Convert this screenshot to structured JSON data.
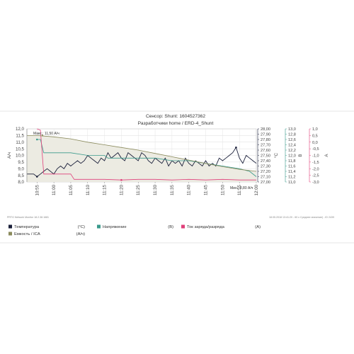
{
  "chart_data": {
    "type": "line",
    "title": "Сенсор: Shunt: 1604527362",
    "subtitle": "Разработчики home / ERD-4_Shunt",
    "x": [
      "10:55",
      "11:00",
      "11:05",
      "11:10",
      "11:15",
      "11:20",
      "11:25",
      "11:30",
      "11:35",
      "11:40",
      "11:45",
      "11:50",
      "11:55",
      "12:00"
    ],
    "xlim": [
      "10:52",
      "12:00"
    ],
    "axes": {
      "left": {
        "label": "А/ч",
        "ylim": [
          8.0,
          12.0
        ],
        "ticks": [
          "8,0",
          "8,5",
          "9,0",
          "9,5",
          "10,0",
          "10,5",
          "11,0",
          "11,5",
          "12,0"
        ]
      },
      "right1": {
        "label": "°C",
        "ylim": [
          27.0,
          28.0
        ],
        "ticks": [
          "27,00",
          "27,10",
          "27,20",
          "27,30",
          "27,40",
          "27,50",
          "27,60",
          "27,70",
          "27,80",
          "27,90",
          "28,00"
        ]
      },
      "right2": {
        "label": "В",
        "ylim": [
          11.0,
          13.0
        ],
        "ticks": [
          "11,0",
          "11,2",
          "11,4",
          "11,6",
          "11,8",
          "12,0",
          "12,2",
          "12,4",
          "12,6",
          "12,8",
          "13,0"
        ]
      },
      "right3": {
        "label": "A",
        "ylim": [
          -3.0,
          1.0
        ],
        "ticks": [
          "-3,0",
          "-2,5",
          "-2,0",
          "-1,5",
          "-1,0",
          "-0,5",
          "0,0",
          "0,5",
          "1,0"
        ]
      }
    },
    "grid": true,
    "series": [
      {
        "name": "Температура",
        "unit": "(°C)",
        "axis": "right1",
        "color": "#1a1f3a",
        "x": [
          "10:52",
          "10:54",
          "10:55",
          "10:56",
          "10:57",
          "10:58",
          "11:00",
          "11:01",
          "11:02",
          "11:03",
          "11:04",
          "11:05",
          "11:06",
          "11:07",
          "11:08",
          "11:09",
          "11:10",
          "11:11",
          "11:12",
          "11:13",
          "11:14",
          "11:15",
          "11:16",
          "11:17",
          "11:18",
          "11:19",
          "11:20",
          "11:21",
          "11:22",
          "11:23",
          "11:24",
          "11:25",
          "11:26",
          "11:27",
          "11:28",
          "11:29",
          "11:30",
          "11:31",
          "11:32",
          "11:33",
          "11:34",
          "11:35",
          "11:36",
          "11:37",
          "11:38",
          "11:39",
          "11:40",
          "11:41",
          "11:42",
          "11:43",
          "11:44",
          "11:45",
          "11:46",
          "11:47",
          "11:48",
          "11:49",
          "11:50",
          "11:51",
          "11:52",
          "11:53",
          "11:54",
          "11:55",
          "11:56",
          "11:57",
          "11:58",
          "11:59",
          "12:00"
        ],
        "values": [
          27.15,
          27.15,
          27.1,
          27.15,
          27.2,
          27.25,
          27.15,
          27.25,
          27.3,
          27.25,
          27.35,
          27.3,
          27.35,
          27.4,
          27.35,
          27.4,
          27.5,
          27.45,
          27.4,
          27.35,
          27.45,
          27.4,
          27.55,
          27.45,
          27.5,
          27.55,
          27.45,
          27.4,
          27.55,
          27.5,
          27.45,
          27.4,
          27.55,
          27.5,
          27.4,
          27.35,
          27.45,
          27.4,
          27.35,
          27.45,
          27.3,
          27.4,
          27.35,
          27.4,
          27.3,
          27.45,
          27.35,
          27.3,
          27.4,
          27.35,
          27.3,
          27.4,
          27.3,
          27.35,
          27.3,
          27.45,
          27.4,
          27.45,
          27.5,
          27.55,
          27.65,
          27.45,
          27.35,
          27.5,
          27.45,
          27.4,
          27.35
        ]
      },
      {
        "name": "Напряжение",
        "unit": "(В)",
        "axis": "right2",
        "color": "#3a9a8c",
        "x": [
          "10:55",
          "10:56",
          "10:57",
          "10:58",
          "11:00",
          "11:05",
          "11:10",
          "11:15",
          "11:16",
          "11:20",
          "11:25",
          "11:30",
          "11:35",
          "11:40",
          "11:45",
          "11:50",
          "11:55",
          "11:58",
          "12:00"
        ],
        "values": [
          12.6,
          12.6,
          12.1,
          12.1,
          12.1,
          12.1,
          12.0,
          12.0,
          11.9,
          11.9,
          11.9,
          11.9,
          11.8,
          11.8,
          11.7,
          11.6,
          11.5,
          11.4,
          11.2
        ]
      },
      {
        "name": "Ток заряда/разряда",
        "unit": "(A)",
        "axis": "right3",
        "color": "#e0407a",
        "x": [
          "10:55",
          "10:56",
          "10:57",
          "11:00",
          "11:03",
          "11:05",
          "11:06",
          "11:10",
          "11:15",
          "11:20",
          "11:25",
          "11:30",
          "11:35",
          "11:40",
          "11:45",
          "11:50",
          "11:55",
          "12:00"
        ],
        "values": [
          1.0,
          0.9,
          -2.4,
          -2.4,
          -2.4,
          -2.4,
          -2.8,
          -2.8,
          -2.8,
          -2.85,
          -2.8,
          -2.8,
          -2.85,
          -2.8,
          -2.85,
          -2.8,
          -2.85,
          -2.85
        ]
      },
      {
        "name": "Емкость / ICA",
        "unit": "(А/ч)",
        "axis": "left",
        "color": "#8a8a5c",
        "x": [
          "10:52",
          "10:55",
          "11:00",
          "11:05",
          "11:10",
          "11:15",
          "11:20",
          "11:25",
          "11:30",
          "11:35",
          "11:40",
          "11:45",
          "11:50",
          "11:55",
          "12:00"
        ],
        "values": [
          11.5,
          11.5,
          11.4,
          11.25,
          11.0,
          10.8,
          10.6,
          10.4,
          10.15,
          9.9,
          9.65,
          9.4,
          9.15,
          8.95,
          8.8
        ]
      }
    ],
    "annotations": {
      "max": "Макс.: 11,50 А/ч",
      "min": "Мин.: 8,80 А/ч"
    },
    "footer_left": "PRTG Network Monitor 18.2.38.1681",
    "footer_right": "18.05.2018 13:41:20 - 60 с Среднее значение) - ID 2439",
    "legend_placement": "bottom"
  }
}
